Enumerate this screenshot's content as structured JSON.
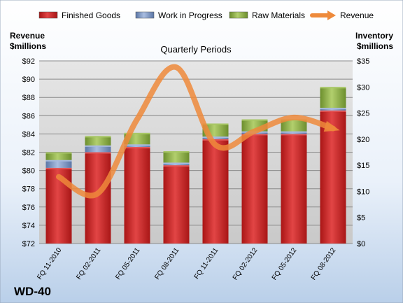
{
  "chart_data": {
    "type": "bar",
    "title": "Quarterly Periods",
    "company": "WD-40",
    "categories": [
      "FQ 11-2010",
      "FQ 02-2011",
      "FQ 05-2011",
      "FQ 08-2011",
      "FQ 11-2011",
      "FQ 02-2012",
      "FQ 05-2012",
      "FQ 08-2012"
    ],
    "stacked": true,
    "left_axis": {
      "label_line1": "Revenue",
      "label_line2": "$millions",
      "range": [
        72,
        92
      ],
      "ticks": [
        "$72",
        "$74",
        "$76",
        "$78",
        "$80",
        "$82",
        "$84",
        "$86",
        "$88",
        "$90",
        "$92"
      ]
    },
    "right_axis": {
      "label_line1": "Inventory",
      "label_line2": "$millions",
      "range": [
        0,
        35
      ],
      "ticks": [
        "$0",
        "$5",
        "$10",
        "$15",
        "$20",
        "$25",
        "$30",
        "$35"
      ]
    },
    "series": [
      {
        "name": "Finished Goods",
        "axis": "right",
        "color": "#cc2a2a",
        "values": [
          14.5,
          17.5,
          18.5,
          15.0,
          20.0,
          21.0,
          21.0,
          25.5
        ]
      },
      {
        "name": "Work in Progress",
        "axis": "right",
        "color": "#7d96c2",
        "values": [
          1.5,
          1.3,
          0.5,
          0.5,
          0.5,
          0.5,
          0.5,
          0.5
        ]
      },
      {
        "name": "Raw Materials",
        "axis": "right",
        "color": "#8fb04a",
        "values": [
          1.5,
          1.8,
          2.2,
          2.2,
          2.5,
          2.3,
          2.3,
          4.0
        ]
      },
      {
        "name": "Revenue",
        "axis": "left",
        "type": "line",
        "color": "#ee8a3b",
        "values": [
          79.3,
          77.5,
          85.6,
          91.3,
          82.8,
          84.3,
          85.8,
          84.6
        ]
      }
    ],
    "grid": true,
    "legend": "top"
  }
}
